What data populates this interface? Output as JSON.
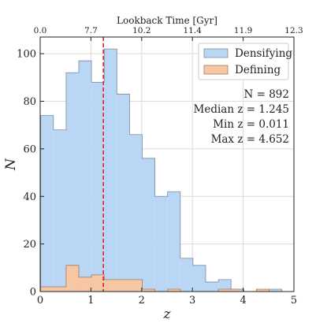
{
  "chart_data": {
    "type": "histogram",
    "xlabel": "z",
    "ylabel": "N",
    "top_axis_label": "Lookback Time [Gyr]",
    "xlim": [
      0,
      5
    ],
    "ylim": [
      0,
      107
    ],
    "x_ticks": [
      "0",
      "1",
      "2",
      "3",
      "4",
      "5"
    ],
    "y_ticks": [
      "0",
      "20",
      "40",
      "60",
      "80",
      "100"
    ],
    "top_ticks": [
      {
        "z": 0.0,
        "label": "0.0"
      },
      {
        "z": 1.0,
        "label": "7.7"
      },
      {
        "z": 2.0,
        "label": "10.2"
      },
      {
        "z": 3.0,
        "label": "11.4"
      },
      {
        "z": 4.0,
        "label": "11.9"
      },
      {
        "z": 5.0,
        "label": "12.3"
      }
    ],
    "grid": true,
    "legend_position": "top-right",
    "bin_edges": [
      0.011,
      0.261,
      0.511,
      0.761,
      1.011,
      1.261,
      1.511,
      1.761,
      2.011,
      2.261,
      2.511,
      2.761,
      3.011,
      3.261,
      3.511,
      3.761,
      4.011,
      4.261,
      4.511,
      4.761,
      5.011
    ],
    "series": [
      {
        "name": "Densifying",
        "color": "#b9d6f4",
        "edge": "#7a8aa0",
        "counts": [
          74,
          68,
          92,
          97,
          88,
          102,
          83,
          66,
          56,
          40,
          42,
          14,
          11,
          4,
          5,
          1,
          0,
          0,
          1,
          0
        ]
      },
      {
        "name": "Defining",
        "color": "#f7c6a3",
        "edge": "#a07a60",
        "counts": [
          2,
          2,
          11,
          6,
          7,
          5,
          5,
          5,
          1,
          0,
          1,
          0,
          0,
          0,
          1,
          1,
          0,
          1,
          0,
          0
        ]
      }
    ],
    "median_line": {
      "value": 1.245,
      "color": "#e02020"
    },
    "annotations": [
      "N = 892",
      "Median z = 1.245",
      "Min z = 0.011",
      "Max z = 4.652"
    ]
  }
}
